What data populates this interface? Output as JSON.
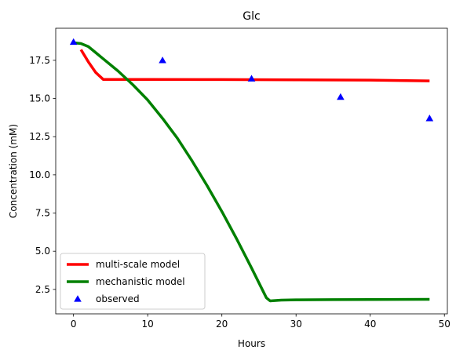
{
  "chart_data": {
    "type": "line",
    "title": "Glc",
    "xlabel": "Hours",
    "ylabel": "Concentration (mM)",
    "xlim": [
      -2.4,
      50.4
    ],
    "ylim": [
      0.9,
      19.6
    ],
    "xticks": [
      0,
      10,
      20,
      30,
      40,
      50
    ],
    "xtick_labels": [
      "0",
      "10",
      "20",
      "30",
      "40",
      "50"
    ],
    "yticks": [
      2.5,
      5.0,
      7.5,
      10.0,
      12.5,
      15.0,
      17.5
    ],
    "ytick_labels": [
      "2.5",
      "5.0",
      "7.5",
      "10.0",
      "12.5",
      "15.0",
      "17.5"
    ],
    "grid": false,
    "legend_position": "lower-left",
    "series": [
      {
        "name": "multi-scale model",
        "kind": "line",
        "color": "#ff0000",
        "x": [
          1,
          2,
          3,
          4,
          6,
          10,
          20,
          30,
          40,
          48
        ],
        "y": [
          18.2,
          17.4,
          16.7,
          16.25,
          16.25,
          16.25,
          16.24,
          16.22,
          16.2,
          16.15
        ]
      },
      {
        "name": "mechanistic model",
        "kind": "line",
        "color": "#008000",
        "x": [
          0,
          1,
          2,
          3,
          4,
          6,
          8,
          10,
          12,
          14,
          16,
          18,
          20,
          22,
          24,
          26,
          26.5,
          28,
          30,
          35,
          40,
          48
        ],
        "y": [
          18.65,
          18.6,
          18.4,
          18.0,
          17.6,
          16.8,
          15.9,
          14.9,
          13.7,
          12.4,
          10.9,
          9.3,
          7.6,
          5.8,
          3.9,
          1.95,
          1.75,
          1.8,
          1.82,
          1.83,
          1.84,
          1.85
        ]
      },
      {
        "name": "observed",
        "kind": "scatter",
        "marker": "triangle",
        "color": "#0000ff",
        "x": [
          0,
          12,
          24,
          36,
          48
        ],
        "y": [
          18.7,
          17.5,
          16.3,
          15.1,
          13.7
        ]
      }
    ]
  }
}
